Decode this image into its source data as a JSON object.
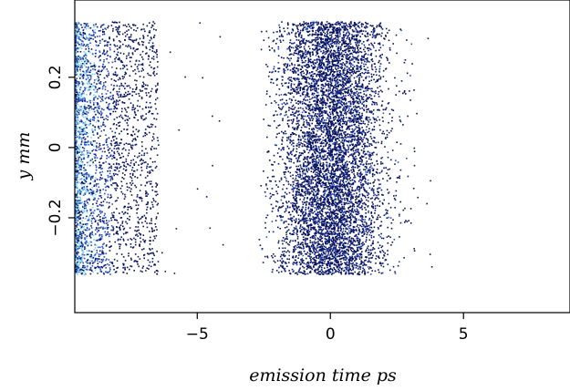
{
  "chart_data": {
    "type": "scatter",
    "title": "",
    "xlabel": "emission time ps",
    "ylabel": "y mm",
    "xlim": [
      -9.6,
      9.0
    ],
    "ylim": [
      -0.47,
      0.42
    ],
    "x_ticks": [
      {
        "value": -5,
        "label": "−5"
      },
      {
        "value": 0,
        "label": "0"
      },
      {
        "value": 5,
        "label": "5"
      }
    ],
    "y_ticks": [
      {
        "value": -0.2,
        "label": "−0.2"
      },
      {
        "value": 0,
        "label": "0"
      },
      {
        "value": 0.2,
        "label": "0.2"
      }
    ],
    "grid": false,
    "legend": "none",
    "colors": {
      "dense": "#0a1560",
      "medium": "#2850c8",
      "light": "#7fd9f0"
    },
    "series": [
      {
        "x_range": [
          -9.6,
          -6.5
        ],
        "y_range": [
          -0.36,
          0.36
        ],
        "x_center": -9.3,
        "density": "very high near left edge, decaying to the right"
      },
      {
        "x_range": [
          -2.5,
          3.5
        ],
        "y_range": [
          -0.36,
          0.36
        ],
        "x_center": 0.0,
        "x_spread": 1.0,
        "density": "high, dense cluster"
      }
    ]
  }
}
